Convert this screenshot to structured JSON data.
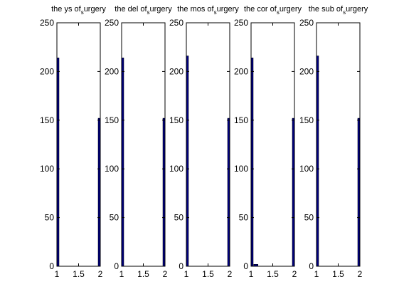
{
  "figure": {
    "background": "#ffffff",
    "bar_color": "#000080",
    "axis_color": "#000000"
  },
  "chart_data": [
    {
      "type": "bar",
      "title": {
        "main": "the ys of",
        "sub": "s",
        "rest": "urgery"
      },
      "x": [
        1,
        1.111,
        1.222,
        1.333,
        1.444,
        1.556,
        1.667,
        1.778,
        1.889,
        2
      ],
      "values": [
        214,
        0,
        0,
        0,
        0,
        0,
        0,
        0,
        0,
        152
      ],
      "xlim": [
        1,
        2
      ],
      "ylim": [
        0,
        250
      ],
      "xticks": [
        "1",
        "1.5",
        "2"
      ],
      "yticks": [
        "0",
        "50",
        "100",
        "150",
        "200",
        "250"
      ],
      "grid": false
    },
    {
      "type": "bar",
      "title": {
        "main": "the del of",
        "sub": "s",
        "rest": "urgery"
      },
      "x": [
        1,
        1.111,
        1.222,
        1.333,
        1.444,
        1.556,
        1.667,
        1.778,
        1.889,
        2
      ],
      "values": [
        214,
        0,
        0,
        0,
        0,
        0,
        0,
        0,
        0,
        152
      ],
      "xlim": [
        1,
        2
      ],
      "ylim": [
        0,
        250
      ],
      "xticks": [
        "1",
        "1.5",
        "2"
      ],
      "yticks": [
        "0",
        "50",
        "100",
        "150",
        "200",
        "250"
      ],
      "grid": false
    },
    {
      "type": "bar",
      "title": {
        "main": "the mos of",
        "sub": "s",
        "rest": "urgery"
      },
      "x": [
        1,
        1.111,
        1.222,
        1.333,
        1.444,
        1.556,
        1.667,
        1.778,
        1.889,
        2
      ],
      "values": [
        216,
        0,
        0,
        0,
        0,
        0,
        0,
        0,
        0,
        152
      ],
      "xlim": [
        1,
        2
      ],
      "ylim": [
        0,
        250
      ],
      "xticks": [
        "1",
        "1.5",
        "2"
      ],
      "yticks": [
        "0",
        "50",
        "100",
        "150",
        "200",
        "250"
      ],
      "grid": false
    },
    {
      "type": "bar",
      "title": {
        "main": "the cor of",
        "sub": "s",
        "rest": "urgery"
      },
      "x": [
        1,
        1.111,
        1.222,
        1.333,
        1.444,
        1.556,
        1.667,
        1.778,
        1.889,
        2
      ],
      "values": [
        214,
        2,
        0,
        0,
        0,
        0,
        0,
        0,
        0,
        152
      ],
      "xlim": [
        1,
        2
      ],
      "ylim": [
        0,
        250
      ],
      "xticks": [
        "1",
        "1.5",
        "2"
      ],
      "yticks": [
        "0",
        "50",
        "100",
        "150",
        "200",
        "250"
      ],
      "grid": false
    },
    {
      "type": "bar",
      "title": {
        "main": "the sub of",
        "sub": "s",
        "rest": "urgery"
      },
      "x": [
        1,
        1.111,
        1.222,
        1.333,
        1.444,
        1.556,
        1.667,
        1.778,
        1.889,
        2
      ],
      "values": [
        216,
        0,
        0,
        0,
        0,
        0,
        0,
        0,
        0,
        152
      ],
      "xlim": [
        1,
        2
      ],
      "ylim": [
        0,
        250
      ],
      "xticks": [
        "1",
        "1.5",
        "2"
      ],
      "yticks": [
        "0",
        "50",
        "100",
        "150",
        "200",
        "250"
      ],
      "grid": false
    }
  ]
}
